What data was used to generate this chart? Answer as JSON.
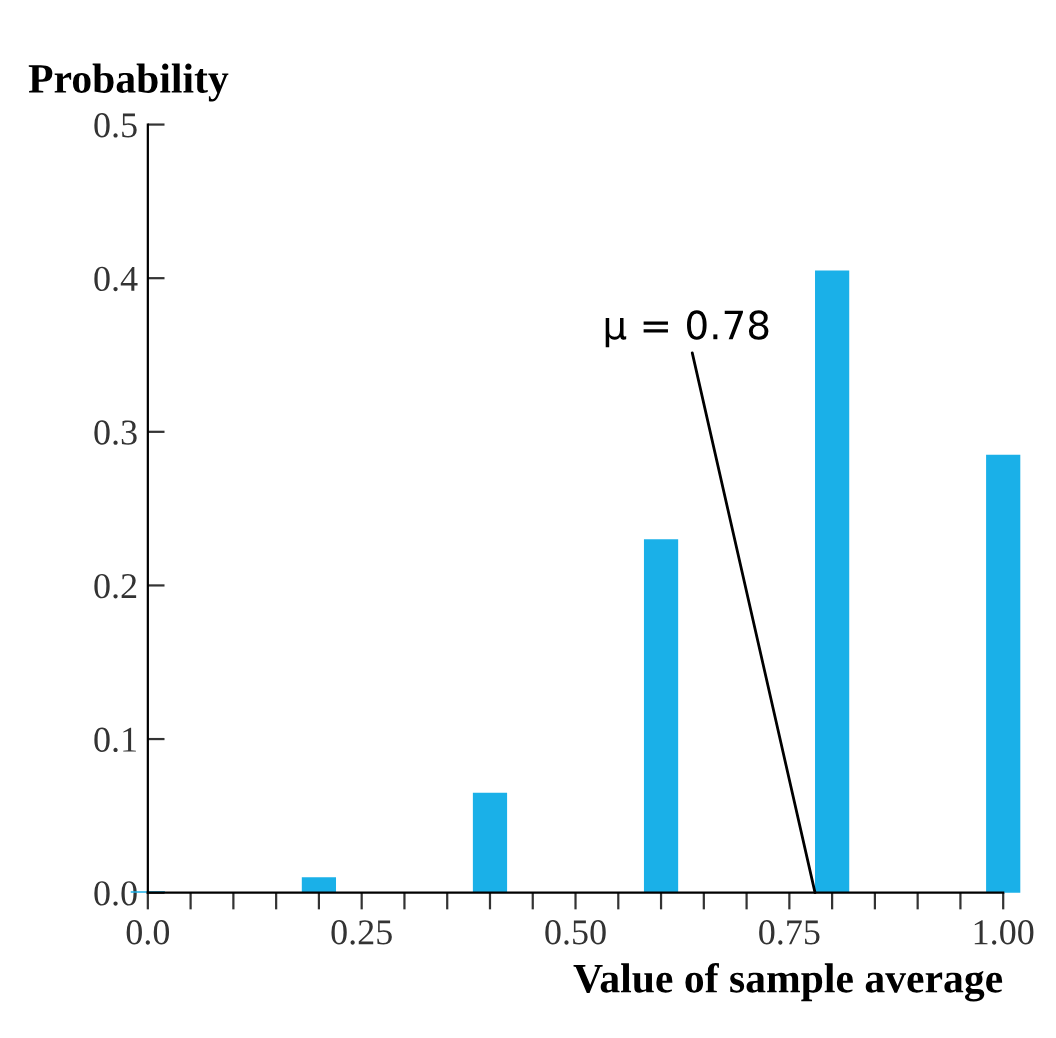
{
  "chart_data": {
    "type": "bar",
    "ylabel": "Probability",
    "xlabel": "Value of sample average",
    "x": [
      0.0,
      0.2,
      0.4,
      0.6,
      0.8,
      1.0
    ],
    "values": [
      0.001,
      0.01,
      0.065,
      0.23,
      0.405,
      0.285
    ],
    "color": "#1ab0e8",
    "xlim": [
      0,
      1.0
    ],
    "xticks": [
      {
        "value": 0,
        "label": "0.0"
      },
      {
        "value": 0.05,
        "label": null
      },
      {
        "value": 0.1,
        "label": null
      },
      {
        "value": 0.15,
        "label": null
      },
      {
        "value": 0.2,
        "label": null
      },
      {
        "value": 0.25,
        "label": "0.25"
      },
      {
        "value": 0.3,
        "label": null
      },
      {
        "value": 0.35,
        "label": null
      },
      {
        "value": 0.4,
        "label": null
      },
      {
        "value": 0.45,
        "label": null
      },
      {
        "value": 0.5,
        "label": "0.50"
      },
      {
        "value": 0.55,
        "label": null
      },
      {
        "value": 0.6,
        "label": null
      },
      {
        "value": 0.65,
        "label": null
      },
      {
        "value": 0.7,
        "label": null
      },
      {
        "value": 0.75,
        "label": "0.75"
      },
      {
        "value": 0.8,
        "label": null
      },
      {
        "value": 0.85,
        "label": null
      },
      {
        "value": 0.9,
        "label": null
      },
      {
        "value": 0.95,
        "label": null
      },
      {
        "value": 1.0,
        "label": "1.00"
      }
    ],
    "ylim": [
      0,
      0.5
    ],
    "yticks": [
      {
        "value": 0,
        "label": "0.0"
      },
      0.1,
      0.2,
      0.3,
      0.4,
      0.5
    ],
    "annotations": [
      {
        "text": "μ = 0.78",
        "x": 0.78,
        "y": 0
      }
    ],
    "grid": false
  }
}
